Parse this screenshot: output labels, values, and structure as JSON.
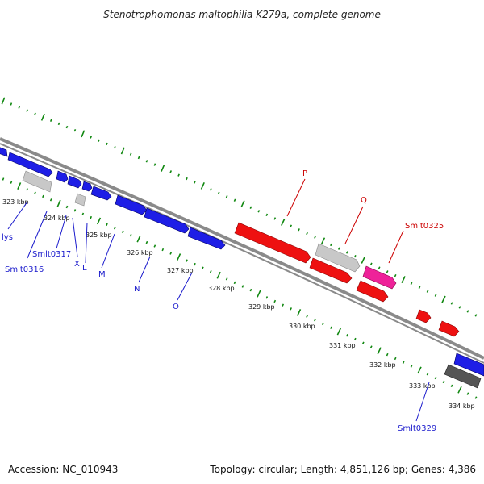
{
  "title": "Stenotrophomonas maltophilia K279a, complete genome",
  "footer": {
    "accession": "Accession: NC_010943",
    "topology": "Topology: circular; Length: 4,851,126 bp; Genes: 4,386"
  },
  "colors": {
    "blue_gene": "#1e1ee6",
    "red_gene": "#ee1111",
    "grey_gene": "#c8c8c8",
    "dark_gene": "#555555",
    "pink_gene": "#ee2299",
    "tick_green": "#118811",
    "backbone": "#888888"
  },
  "ticks": [
    {
      "label": "323 kbp"
    },
    {
      "label": "324 kbp"
    },
    {
      "label": "325 kbp"
    },
    {
      "label": "326 kbp"
    },
    {
      "label": "327 kbp"
    },
    {
      "label": "328 kbp"
    },
    {
      "label": "329 kbp"
    },
    {
      "label": "330 kbp"
    },
    {
      "label": "331 kbp"
    },
    {
      "label": "332 kbp"
    },
    {
      "label": "333 kbp"
    },
    {
      "label": "334 kbp"
    }
  ],
  "gene_labels": {
    "lys": "lys",
    "smlt0316": "Smlt0316",
    "smlt0317": "Smlt0317",
    "x": "X",
    "l": "L",
    "m": "M",
    "n": "N",
    "o": "O",
    "p": "P",
    "q": "Q",
    "smlt0325": "Smlt0325",
    "smlt0329": "Smlt0329"
  }
}
